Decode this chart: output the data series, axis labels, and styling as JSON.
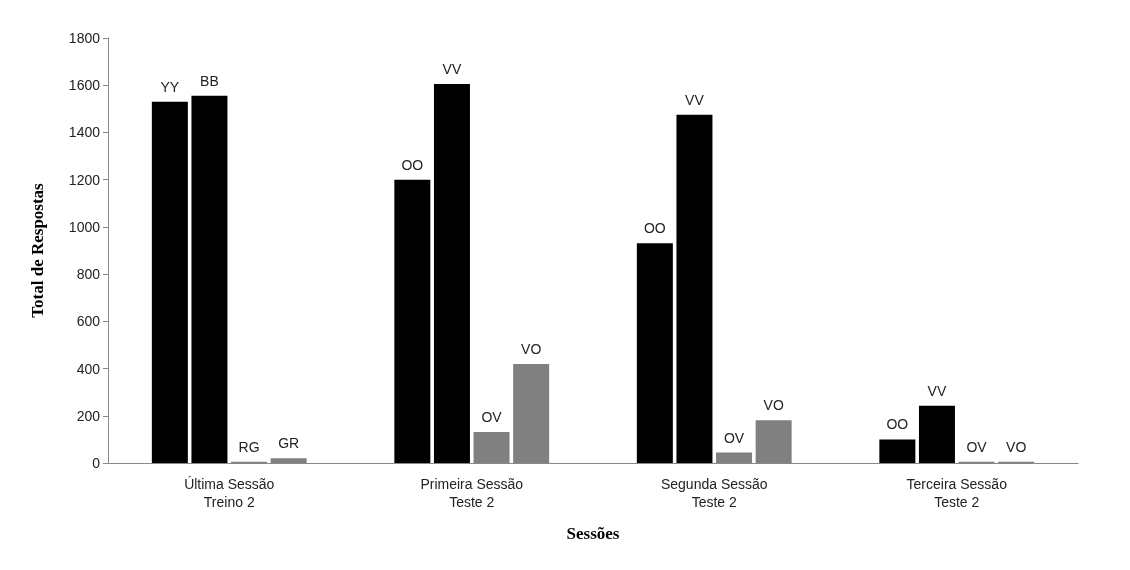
{
  "chart_data": {
    "type": "bar",
    "xlabel": "Sessões",
    "ylabel": "Total de Respostas",
    "categories": [
      "Última Sessão\nTreino 2",
      "Primeira Sessão\nTeste 2",
      "Segunda Sessão\nTeste 2",
      "Terceira Sessão\nTeste 2"
    ],
    "series": [
      {
        "color": "#000000",
        "values": [
          1530,
          1200,
          931,
          100
        ],
        "value_labels": [
          "YY",
          "OO",
          "OO",
          "OO"
        ]
      },
      {
        "color": "#000000",
        "values": [
          1555,
          1605,
          1475,
          243
        ],
        "value_labels": [
          "BB",
          "VV",
          "VV",
          "VV"
        ]
      },
      {
        "color": "#808080",
        "values": [
          5,
          131,
          44,
          5
        ],
        "value_labels": [
          "RG",
          "OV",
          "OV",
          "OV"
        ]
      },
      {
        "color": "#808080",
        "values": [
          20,
          419,
          181,
          5
        ],
        "value_labels": [
          "GR",
          "VO",
          "VO",
          "VO"
        ]
      }
    ],
    "ylim": [
      0,
      1800
    ],
    "yticks": [
      0,
      200,
      400,
      600,
      800,
      1000,
      1200,
      1400,
      1600,
      1800
    ],
    "grid": false
  }
}
